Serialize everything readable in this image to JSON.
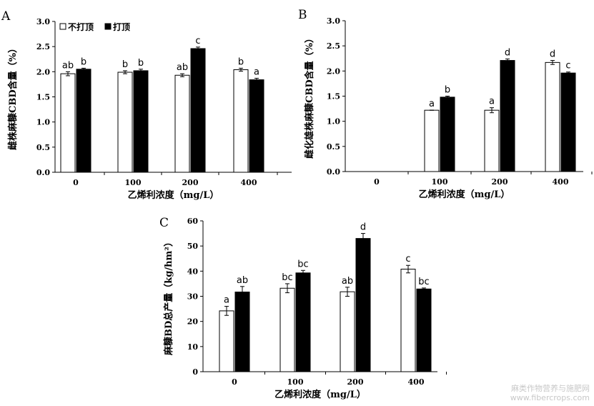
{
  "legend": [
    {
      "label": "不打顶",
      "fill": "#ffffff"
    },
    {
      "label": "打顶",
      "fill": "#000000"
    }
  ],
  "watermark": {
    "line1": "麻类作物营养与施肥网",
    "line2": "www.fibercrops.com"
  },
  "chart_data": [
    {
      "panel": "A",
      "type": "bar",
      "categories": [
        "0",
        "100",
        "200",
        "400"
      ],
      "xlabel": "乙烯利浓度（mg/L）",
      "ylabel": "雌株麻糠CBD含量（%）",
      "ylim": [
        0,
        3.0
      ],
      "yticks": [
        "0.0",
        "0.5",
        "1.0",
        "1.5",
        "2.0",
        "2.5",
        "3.0"
      ],
      "series": [
        {
          "name": "不打顶",
          "fill": "#ffffff",
          "values": [
            1.96,
            1.99,
            1.93,
            2.04
          ],
          "errors": [
            0.04,
            0.03,
            0.03,
            0.03
          ],
          "labels": [
            "ab",
            "b",
            "ab",
            "b"
          ]
        },
        {
          "name": "打顶",
          "fill": "#000000",
          "values": [
            2.05,
            2.02,
            2.46,
            1.84
          ],
          "errors": [
            0.02,
            0.03,
            0.03,
            0.03
          ],
          "labels": [
            "b",
            "b",
            "c",
            "a"
          ]
        }
      ]
    },
    {
      "panel": "B",
      "type": "bar",
      "categories": [
        "0",
        "100",
        "200",
        "400"
      ],
      "xlabel": "乙烯利浓度（mg/L）",
      "ylabel": "雌化雄株麻糠CBD含量（%）",
      "ylim": [
        0,
        3.0
      ],
      "yticks": [
        "0.0",
        "0.5",
        "1.0",
        "1.5",
        "2.0",
        "2.5",
        "3.0"
      ],
      "series": [
        {
          "name": "不打顶",
          "fill": "#ffffff",
          "values": [
            null,
            1.22,
            1.22,
            2.17
          ],
          "errors": [
            null,
            0.0,
            0.05,
            0.04
          ],
          "labels": [
            "",
            "a",
            "a",
            "d"
          ]
        },
        {
          "name": "打顶",
          "fill": "#000000",
          "values": [
            null,
            1.48,
            2.21,
            1.96
          ],
          "errors": [
            null,
            0.02,
            0.03,
            0.02
          ],
          "labels": [
            "",
            "b",
            "d",
            "c"
          ]
        }
      ]
    },
    {
      "panel": "C",
      "type": "bar",
      "categories": [
        "0",
        "100",
        "200",
        "400"
      ],
      "xlabel": "乙烯利浓度（mg/L）",
      "ylabel": "麻糠BD总产量（kg/hm²）",
      "ylim": [
        0,
        60
      ],
      "yticks": [
        "0",
        "10",
        "20",
        "30",
        "40",
        "50",
        "60"
      ],
      "series": [
        {
          "name": "不打顶",
          "fill": "#ffffff",
          "values": [
            24.2,
            33.2,
            31.8,
            40.8
          ],
          "errors": [
            1.8,
            1.8,
            1.8,
            1.5
          ],
          "labels": [
            "a",
            "bc",
            "ab",
            "c"
          ]
        },
        {
          "name": "打顶",
          "fill": "#000000",
          "values": [
            31.7,
            39.3,
            53.0,
            32.9
          ],
          "errors": [
            2.2,
            1.0,
            2.0,
            0.4
          ],
          "labels": [
            "ab",
            "bc",
            "d",
            "bc"
          ]
        }
      ]
    }
  ]
}
